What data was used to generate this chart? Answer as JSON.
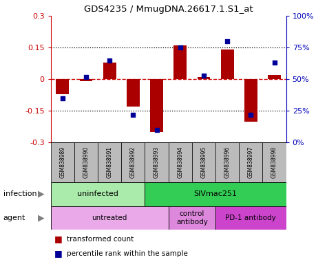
{
  "title": "GDS4235 / MmugDNA.26617.1.S1_at",
  "samples": [
    "GSM838989",
    "GSM838990",
    "GSM838991",
    "GSM838992",
    "GSM838993",
    "GSM838994",
    "GSM838995",
    "GSM838996",
    "GSM838997",
    "GSM838998"
  ],
  "red_bars": [
    -0.07,
    -0.01,
    0.08,
    -0.13,
    -0.25,
    0.16,
    0.01,
    0.14,
    -0.2,
    0.02
  ],
  "blue_dots": [
    35,
    52,
    65,
    22,
    10,
    75,
    53,
    80,
    22,
    63
  ],
  "ylim": [
    -0.3,
    0.3
  ],
  "y2lim": [
    0,
    100
  ],
  "yticks": [
    -0.3,
    -0.15,
    0,
    0.15,
    0.3
  ],
  "y2ticks": [
    0,
    25,
    50,
    75,
    100
  ],
  "y2ticklabels": [
    "0%",
    "25%",
    "50%",
    "75%",
    "100%"
  ],
  "hlines_dotted": [
    -0.15,
    0.15
  ],
  "hline_zero": 0,
  "infection_groups": [
    {
      "label": "uninfected",
      "start": 0,
      "end": 4,
      "color": "#AAEAAA"
    },
    {
      "label": "SIVmac251",
      "start": 4,
      "end": 10,
      "color": "#33CC55"
    }
  ],
  "agent_groups": [
    {
      "label": "untreated",
      "start": 0,
      "end": 5,
      "color": "#EAAAEA"
    },
    {
      "label": "control\nantibody",
      "start": 5,
      "end": 7,
      "color": "#DD88DD"
    },
    {
      "label": "PD-1 antibody",
      "start": 7,
      "end": 10,
      "color": "#CC44CC"
    }
  ],
  "bar_color": "#AA0000",
  "dot_color": "#000099",
  "legend_bar_label": "transformed count",
  "legend_dot_label": "percentile rank within the sample",
  "infection_label": "infection",
  "agent_label": "agent",
  "title_color": "#000000",
  "left_axis_color": "#CC0000",
  "right_axis_color": "#0000BB",
  "zero_line_color": "#CC0000",
  "sample_bg_color": "#BBBBBB",
  "fig_bg": "#FFFFFF"
}
